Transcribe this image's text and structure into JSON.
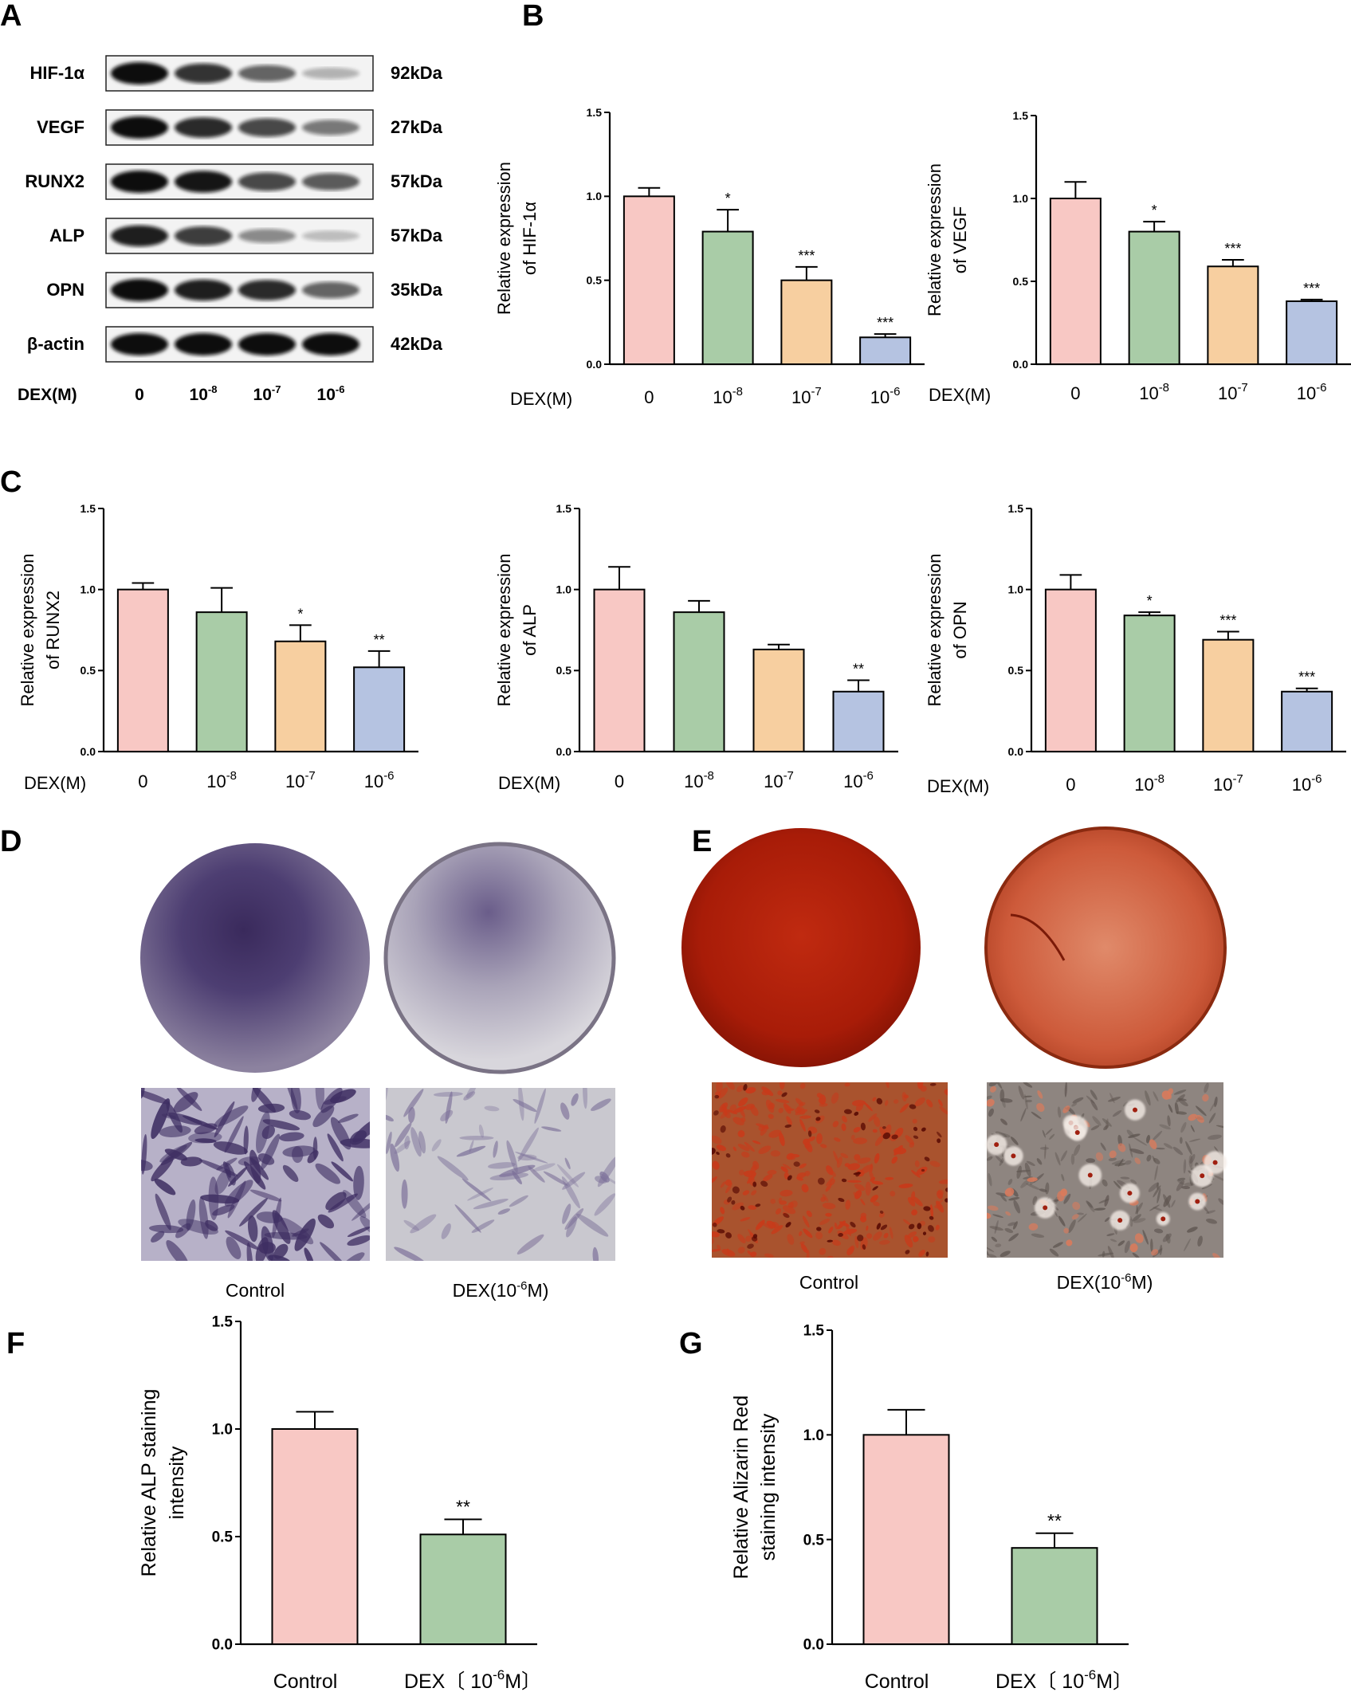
{
  "panels": {
    "A": "A",
    "B": "B",
    "C": "C",
    "D": "D",
    "E": "E",
    "F": "F",
    "G": "G"
  },
  "western_blot": {
    "rows": [
      {
        "protein": "HIF-1α",
        "size": "92kDa",
        "intensity": [
          1.0,
          0.8,
          0.55,
          0.15
        ]
      },
      {
        "protein": "VEGF",
        "size": "27kDa",
        "intensity": [
          1.0,
          0.85,
          0.7,
          0.45
        ]
      },
      {
        "protein": "RUNX2",
        "size": "57kDa",
        "intensity": [
          1.0,
          0.95,
          0.7,
          0.6
        ]
      },
      {
        "protein": "ALP",
        "size": "57kDa",
        "intensity": [
          0.9,
          0.75,
          0.35,
          0.1
        ]
      },
      {
        "protein": "OPN",
        "size": "35kDa",
        "intensity": [
          1.0,
          0.9,
          0.85,
          0.55
        ]
      },
      {
        "protein": "β-actin",
        "size": "42kDa",
        "intensity": [
          1.0,
          1.0,
          1.0,
          1.0
        ]
      }
    ],
    "dex_label": "DEX(M)",
    "lanes": [
      {
        "base": "0",
        "exp": ""
      },
      {
        "base": "10",
        "exp": "-8"
      },
      {
        "base": "10",
        "exp": "-7"
      },
      {
        "base": "10",
        "exp": "-6"
      }
    ]
  },
  "colors": {
    "c0": "#f8c8c4",
    "c1": "#a9cca7",
    "c2": "#f7cfa0",
    "c3": "#b5c3e1"
  },
  "dex_axis_label": "DEX(M)",
  "dose_ticks": [
    {
      "base": "0",
      "exp": ""
    },
    {
      "base": "10",
      "exp": "-8"
    },
    {
      "base": "10",
      "exp": "-7"
    },
    {
      "base": "10",
      "exp": "-6"
    }
  ],
  "chart_data": [
    {
      "id": "hif",
      "panel": "B",
      "type": "bar",
      "categories": [
        "0",
        "10-8",
        "10-7",
        "10-6"
      ],
      "values": [
        1.0,
        0.79,
        0.5,
        0.16
      ],
      "errors": [
        0.05,
        0.13,
        0.08,
        0.02
      ],
      "sig": [
        "",
        "*",
        "***",
        "***"
      ],
      "ylabel": [
        "Relative expression",
        "of HIF-1α"
      ],
      "ylim": [
        0,
        1.5
      ],
      "yticks": [
        "0.0",
        "0.5",
        "1.0",
        "1.5"
      ]
    },
    {
      "id": "vegf",
      "panel": "B",
      "type": "bar",
      "categories": [
        "0",
        "10-8",
        "10-7",
        "10-6"
      ],
      "values": [
        1.0,
        0.8,
        0.59,
        0.38
      ],
      "errors": [
        0.1,
        0.06,
        0.04,
        0.01
      ],
      "sig": [
        "",
        "*",
        "***",
        "***"
      ],
      "ylabel": [
        "Relative expression",
        "of VEGF"
      ],
      "ylim": [
        0,
        1.5
      ],
      "yticks": [
        "0.0",
        "0.5",
        "1.0",
        "1.5"
      ]
    },
    {
      "id": "runx2",
      "panel": "C",
      "type": "bar",
      "categories": [
        "0",
        "10-8",
        "10-7",
        "10-6"
      ],
      "values": [
        1.0,
        0.86,
        0.68,
        0.52
      ],
      "errors": [
        0.04,
        0.15,
        0.1,
        0.1
      ],
      "sig": [
        "",
        "",
        "*",
        "**"
      ],
      "ylabel": [
        "Relative expression",
        "of RUNX2"
      ],
      "ylim": [
        0,
        1.5
      ],
      "yticks": [
        "0.0",
        "0.5",
        "1.0",
        "1.5"
      ]
    },
    {
      "id": "alp",
      "panel": "C",
      "type": "bar",
      "categories": [
        "0",
        "10-8",
        "10-7",
        "10-6"
      ],
      "values": [
        1.0,
        0.86,
        0.63,
        0.37
      ],
      "errors": [
        0.14,
        0.07,
        0.03,
        0.07
      ],
      "sig": [
        "",
        "",
        "",
        "**"
      ],
      "ylabel": [
        "Relative expression",
        "of ALP"
      ],
      "ylim": [
        0,
        1.5
      ],
      "yticks": [
        "0.0",
        "0.5",
        "1.0",
        "1.5"
      ]
    },
    {
      "id": "opn",
      "panel": "C",
      "type": "bar",
      "categories": [
        "0",
        "10-8",
        "10-7",
        "10-6"
      ],
      "values": [
        1.0,
        0.84,
        0.69,
        0.37
      ],
      "errors": [
        0.09,
        0.02,
        0.05,
        0.02
      ],
      "sig": [
        "",
        "*",
        "***",
        "***"
      ],
      "ylabel": [
        "Relative expression",
        "of OPN"
      ],
      "ylim": [
        0,
        1.5
      ],
      "yticks": [
        "0.0",
        "0.5",
        "1.0",
        "1.5"
      ]
    },
    {
      "id": "alp_stain",
      "panel": "F",
      "type": "bar",
      "categories": [
        "Control",
        "DEX(10-6M)"
      ],
      "values": [
        1.0,
        0.51
      ],
      "errors": [
        0.08,
        0.07
      ],
      "sig": [
        "",
        "**"
      ],
      "ylabel": [
        "Relative ALP staining",
        "intensity"
      ],
      "ylim": [
        0,
        1.5
      ],
      "yticks": [
        "0.0",
        "0.5",
        "1.0",
        "1.5"
      ]
    },
    {
      "id": "ars_stain",
      "panel": "G",
      "type": "bar",
      "categories": [
        "Control",
        "DEX(10-6M)"
      ],
      "values": [
        1.0,
        0.46
      ],
      "errors": [
        0.12,
        0.07
      ],
      "sig": [
        "",
        "**"
      ],
      "ylabel": [
        "Relative Alizarin Red",
        "staining intensity"
      ],
      "ylim": [
        0,
        1.5
      ],
      "yticks": [
        "0.0",
        "0.5",
        "1.0",
        "1.5"
      ]
    }
  ],
  "fg_ticks": {
    "control": "Control",
    "dex_pre": "DEX〔 10",
    "dex_exp": "-6",
    "dex_post": "M〕"
  },
  "staining": {
    "D": {
      "control_label": "Control",
      "dex_pre": "DEX(10",
      "dex_exp": "-6",
      "dex_post": "M)",
      "colors": {
        "dark": "#3e2e62",
        "mid": "#7b6f98",
        "light": "#c8c5cf"
      }
    },
    "E": {
      "control_label": "Control",
      "dex_pre": "DEX(10",
      "dex_exp": "-6",
      "dex_post": "M)",
      "colors": {
        "dark": "#9c1808",
        "mid": "#c83a1a",
        "light": "#dc7a5a"
      }
    }
  }
}
